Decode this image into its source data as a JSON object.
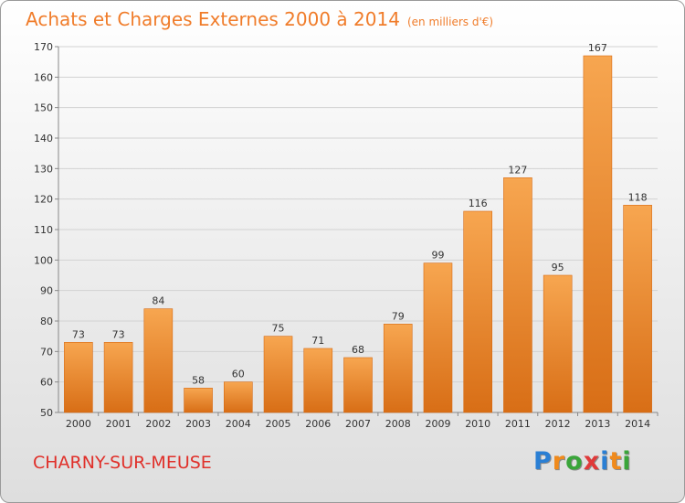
{
  "title": "Achats et Charges Externes 2000 à 2014",
  "unit": "(en milliers d'€)",
  "commune": "CHARNY-SUR-MEUSE",
  "logo": {
    "letters": [
      "P",
      "r",
      "o",
      "x",
      "i",
      "t",
      "i"
    ],
    "colors": [
      "#2a7fd4",
      "#f08a1c",
      "#3aa53a",
      "#e03a3a",
      "#2a7fd4",
      "#f08a1c",
      "#3aa53a"
    ]
  },
  "colors": {
    "bar": "#f08a2a",
    "bar_dark": "#d76a12",
    "title": "#f07c2a",
    "commune": "#e0302a"
  },
  "chart_data": {
    "type": "bar",
    "categories": [
      "2000",
      "2001",
      "2002",
      "2003",
      "2004",
      "2005",
      "2006",
      "2007",
      "2008",
      "2009",
      "2010",
      "2011",
      "2012",
      "2013",
      "2014"
    ],
    "values": [
      73,
      73,
      84,
      58,
      60,
      75,
      71,
      68,
      79,
      99,
      116,
      127,
      95,
      167,
      118
    ],
    "yticks": [
      50,
      60,
      70,
      80,
      90,
      100,
      110,
      120,
      130,
      140,
      150,
      160,
      170
    ],
    "ylim": [
      50,
      170
    ],
    "grid": true,
    "legend": "none"
  }
}
